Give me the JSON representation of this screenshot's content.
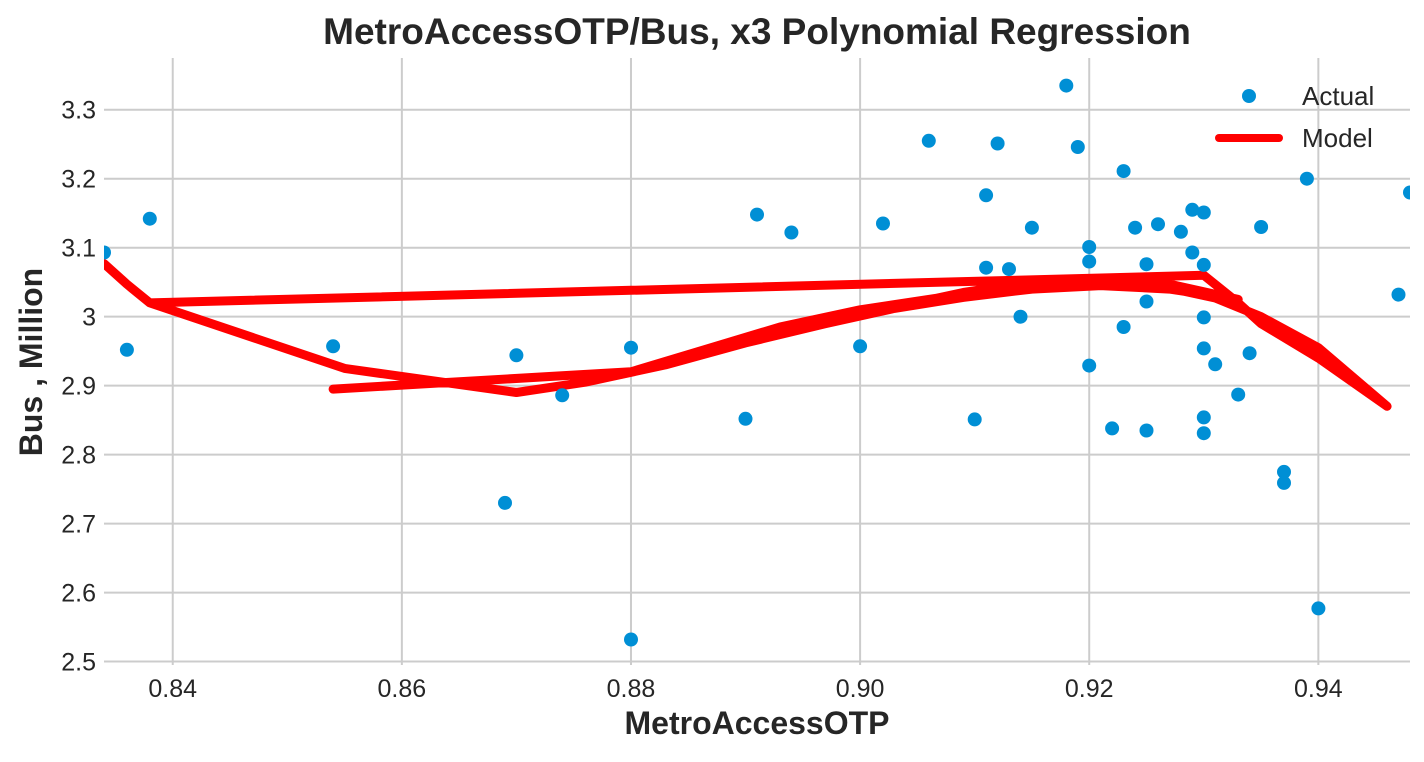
{
  "colors": {
    "actual": "#008fd5",
    "model": "#ff0000",
    "grid": "#cccccc",
    "text": "#262626"
  },
  "chart_data": {
    "type": "scatter",
    "title": "MetroAccessOTP/Bus, x3 Polynomial Regression",
    "xlabel": "MetroAccessOTP",
    "ylabel": "Bus , Million",
    "xlim": [
      0.834,
      0.948
    ],
    "ylim": [
      2.495,
      3.375
    ],
    "grid": true,
    "legend_position": "top-right",
    "xticks": [
      {
        "value": 0.84,
        "label": "0.84"
      },
      {
        "value": 0.86,
        "label": "0.86"
      },
      {
        "value": 0.88,
        "label": "0.88"
      },
      {
        "value": 0.9,
        "label": "0.90"
      },
      {
        "value": 0.92,
        "label": "0.92"
      },
      {
        "value": 0.94,
        "label": "0.94"
      }
    ],
    "yticks": [
      {
        "value": 2.5,
        "label": "2.5"
      },
      {
        "value": 2.6,
        "label": "2.6"
      },
      {
        "value": 2.7,
        "label": "2.7"
      },
      {
        "value": 2.8,
        "label": "2.8"
      },
      {
        "value": 2.9,
        "label": "2.9"
      },
      {
        "value": 3.0,
        "label": "3"
      },
      {
        "value": 3.1,
        "label": "3.1"
      },
      {
        "value": 3.2,
        "label": "3.2"
      },
      {
        "value": 3.3,
        "label": "3.3"
      }
    ],
    "series": [
      {
        "name": "Actual",
        "kind": "scatter",
        "points": [
          [
            0.834,
            3.093
          ],
          [
            0.836,
            2.952
          ],
          [
            0.838,
            3.142
          ],
          [
            0.854,
            2.957
          ],
          [
            0.869,
            2.73
          ],
          [
            0.87,
            2.944
          ],
          [
            0.874,
            2.886
          ],
          [
            0.88,
            2.955
          ],
          [
            0.88,
            2.532
          ],
          [
            0.89,
            2.852
          ],
          [
            0.891,
            3.148
          ],
          [
            0.894,
            3.122
          ],
          [
            0.9,
            2.957
          ],
          [
            0.902,
            3.135
          ],
          [
            0.906,
            3.255
          ],
          [
            0.91,
            2.851
          ],
          [
            0.911,
            3.176
          ],
          [
            0.911,
            3.071
          ],
          [
            0.912,
            3.251
          ],
          [
            0.913,
            3.069
          ],
          [
            0.914,
            3.0
          ],
          [
            0.915,
            3.129
          ],
          [
            0.918,
            3.335
          ],
          [
            0.919,
            3.246
          ],
          [
            0.92,
            3.101
          ],
          [
            0.92,
            3.08
          ],
          [
            0.92,
            2.929
          ],
          [
            0.922,
            2.838
          ],
          [
            0.923,
            3.211
          ],
          [
            0.923,
            2.985
          ],
          [
            0.924,
            3.129
          ],
          [
            0.925,
            3.076
          ],
          [
            0.925,
            3.022
          ],
          [
            0.925,
            2.835
          ],
          [
            0.926,
            3.134
          ],
          [
            0.928,
            3.123
          ],
          [
            0.929,
            3.155
          ],
          [
            0.929,
            3.093
          ],
          [
            0.93,
            3.151
          ],
          [
            0.93,
            3.075
          ],
          [
            0.93,
            2.999
          ],
          [
            0.93,
            2.954
          ],
          [
            0.93,
            2.854
          ],
          [
            0.93,
            2.831
          ],
          [
            0.931,
            2.931
          ],
          [
            0.933,
            2.887
          ],
          [
            0.934,
            2.947
          ],
          [
            0.935,
            3.13
          ],
          [
            0.937,
            2.775
          ],
          [
            0.937,
            2.759
          ],
          [
            0.939,
            3.2
          ],
          [
            0.94,
            2.577
          ],
          [
            0.947,
            3.032
          ],
          [
            0.948,
            3.18
          ]
        ]
      },
      {
        "name": "Model",
        "kind": "line",
        "points": [
          [
            0.834,
            3.077
          ],
          [
            0.836,
            3.047
          ],
          [
            0.838,
            3.02
          ],
          [
            0.93,
            3.06
          ],
          [
            0.933,
            3.02
          ],
          [
            0.935,
            2.99
          ],
          [
            0.937,
            2.97
          ],
          [
            0.94,
            2.94
          ],
          [
            0.946,
            2.87
          ],
          [
            0.94,
            2.955
          ],
          [
            0.935,
            3.0
          ],
          [
            0.931,
            3.027
          ],
          [
            0.926,
            3.045
          ],
          [
            0.92,
            3.05
          ],
          [
            0.914,
            3.045
          ],
          [
            0.908,
            3.03
          ],
          [
            0.9,
            3.01
          ],
          [
            0.893,
            2.985
          ],
          [
            0.887,
            2.955
          ],
          [
            0.88,
            2.92
          ],
          [
            0.854,
            2.895
          ],
          [
            0.88,
            2.92
          ],
          [
            0.889,
            2.965
          ],
          [
            0.895,
            2.985
          ],
          [
            0.902,
            3.01
          ],
          [
            0.909,
            3.035
          ],
          [
            0.915,
            3.05
          ],
          [
            0.921,
            3.055
          ],
          [
            0.927,
            3.047
          ],
          [
            0.933,
            3.025
          ],
          [
            0.927,
            3.04
          ],
          [
            0.921,
            3.045
          ],
          [
            0.915,
            3.04
          ],
          [
            0.909,
            3.028
          ],
          [
            0.903,
            3.012
          ],
          [
            0.897,
            2.99
          ],
          [
            0.89,
            2.962
          ],
          [
            0.883,
            2.93
          ],
          [
            0.876,
            2.905
          ],
          [
            0.87,
            2.89
          ],
          [
            0.855,
            2.925
          ],
          [
            0.838,
            3.02
          ]
        ]
      }
    ]
  }
}
